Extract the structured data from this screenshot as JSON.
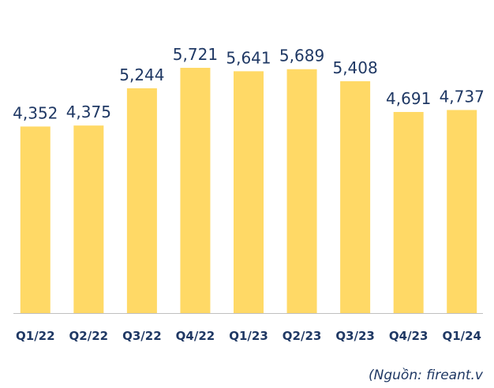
{
  "chart_data": {
    "type": "bar",
    "categories": [
      "Q1/22",
      "Q2/22",
      "Q3/22",
      "Q4/22",
      "Q1/23",
      "Q2/23",
      "Q3/23",
      "Q4/23",
      "Q1/24"
    ],
    "values": [
      4352,
      4375,
      5244,
      5721,
      5641,
      5689,
      5408,
      4691,
      4737
    ],
    "value_labels": [
      "4,352",
      "4,375",
      "5,244",
      "5,721",
      "5,641",
      "5,689",
      "5,408",
      "4,691",
      "4,737"
    ],
    "color": "#ffd966",
    "source": "(Nguồn: fireant.v"
  }
}
